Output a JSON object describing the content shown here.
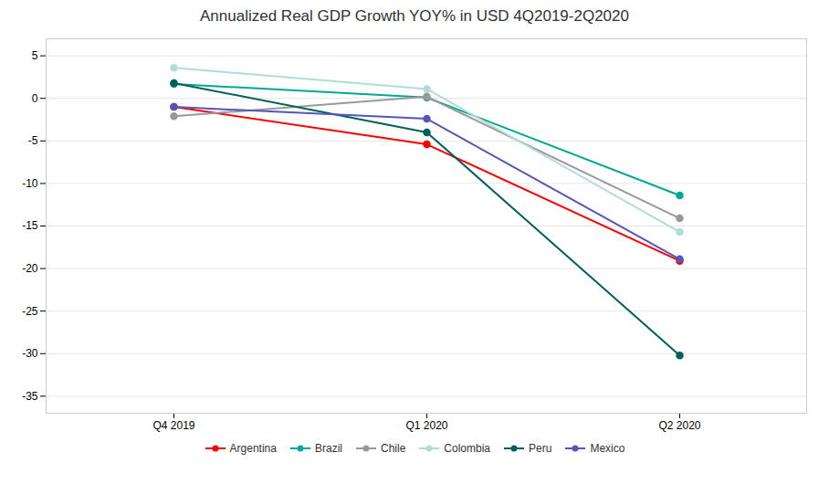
{
  "chart_data": {
    "type": "line",
    "title": "Annualized Real GDP Growth YOY% in USD 4Q2019-2Q2020",
    "categories": [
      "Q4 2019",
      "Q1 2020",
      "Q2 2020"
    ],
    "series": [
      {
        "name": "Argentina",
        "color": "#FF0000",
        "marker": "circle",
        "values": [
          -1.0,
          -5.4,
          -19.1
        ]
      },
      {
        "name": "Brazil",
        "color": "#00A896",
        "marker": "circle",
        "values": [
          1.7,
          0.1,
          -11.4
        ]
      },
      {
        "name": "Chile",
        "color": "#999999",
        "marker": "circle",
        "values": [
          -2.1,
          0.2,
          -14.1
        ]
      },
      {
        "name": "Colombia",
        "color": "#B0DDD9",
        "marker": "circle",
        "values": [
          3.6,
          1.1,
          -15.7
        ]
      },
      {
        "name": "Peru",
        "color": "#005F5B",
        "marker": "circle",
        "values": [
          1.8,
          -4.0,
          -30.2
        ]
      },
      {
        "name": "Mexico",
        "color": "#5555BB",
        "marker": "circle",
        "values": [
          -1.0,
          -2.4,
          -18.9
        ]
      }
    ],
    "ylim": [
      -37,
      7
    ],
    "yticks": [
      5,
      0,
      -5,
      -10,
      -15,
      -20,
      -25,
      -30,
      -35
    ],
    "grid": true,
    "legend": "bottom"
  }
}
